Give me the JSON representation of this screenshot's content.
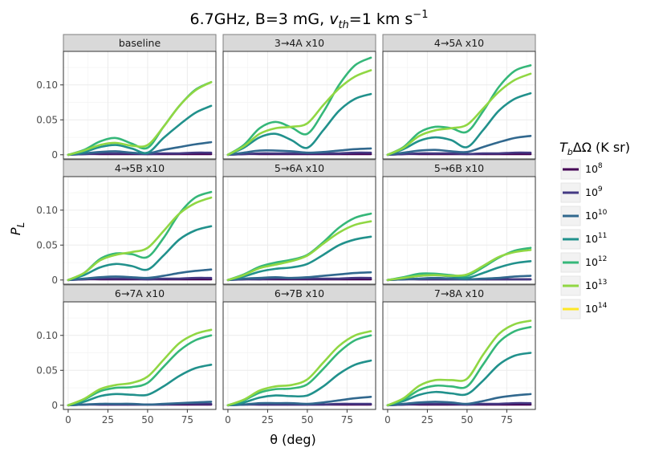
{
  "chart_data": {
    "type": "line",
    "title": "6.7GHz, B=3 mG, v_th=1 km s^-1",
    "title_parts": {
      "prefix": "6.7GHz, B=3 mG, ",
      "v": "v",
      "sub": "th",
      "eq": "=1 km s",
      "sup": "−1"
    },
    "xlabel": "θ (deg)",
    "ylabel": "P_L",
    "ylabel_parts": {
      "main": "P",
      "sub": "L"
    },
    "xlim": [
      -3,
      93
    ],
    "ylim": [
      -0.006,
      0.148
    ],
    "xticks": [
      0,
      25,
      50,
      75
    ],
    "xtick_labels": [
      "0",
      "25",
      "50",
      "75"
    ],
    "yticks": [
      0,
      0.05,
      0.1
    ],
    "ytick_labels": [
      "0",
      "0.05",
      "0.10"
    ],
    "x": [
      0,
      10,
      20,
      30,
      40,
      50,
      60,
      70,
      80,
      90
    ],
    "legend": {
      "title": "T_bΔΩ (K sr)",
      "title_parts": {
        "T": "T",
        "sub": "b",
        "rest": "ΔΩ (K sr)"
      },
      "entries": [
        {
          "base": "10",
          "exp": "8",
          "color": "#440154"
        },
        {
          "base": "10",
          "exp": "9",
          "color": "#443983"
        },
        {
          "base": "10",
          "exp": "10",
          "color": "#31688e"
        },
        {
          "base": "10",
          "exp": "11",
          "color": "#21918c"
        },
        {
          "base": "10",
          "exp": "12",
          "color": "#35b779"
        },
        {
          "base": "10",
          "exp": "13",
          "color": "#90d743"
        },
        {
          "base": "10",
          "exp": "14",
          "color": "#fde725"
        }
      ]
    },
    "panels": [
      {
        "label": "baseline",
        "series": [
          {
            "name": "1e8",
            "values": [
              0,
              0.001,
              0.001,
              0.001,
              0.001,
              0.001,
              0.001,
              0.001,
              0.001,
              0.001
            ]
          },
          {
            "name": "1e9",
            "values": [
              0,
              0.001,
              0.002,
              0.002,
              0.002,
              0.001,
              0.002,
              0.002,
              0.003,
              0.003
            ]
          },
          {
            "name": "1e10",
            "values": [
              0,
              0.002,
              0.004,
              0.005,
              0.003,
              0.002,
              0.007,
              0.011,
              0.015,
              0.018
            ]
          },
          {
            "name": "1e11",
            "values": [
              0,
              0.004,
              0.011,
              0.014,
              0.009,
              0.003,
              0.024,
              0.043,
              0.06,
              0.07
            ]
          },
          {
            "name": "1e12",
            "values": [
              0,
              0.007,
              0.019,
              0.024,
              0.016,
              0.01,
              0.04,
              0.07,
              0.093,
              0.104
            ]
          },
          {
            "name": "1e13",
            "values": [
              0,
              0.006,
              0.014,
              0.017,
              0.013,
              0.014,
              0.04,
              0.07,
              0.092,
              0.104
            ]
          }
        ]
      },
      {
        "label": "3→4A x10",
        "series": [
          {
            "name": "1e8",
            "values": [
              0,
              0.001,
              0.001,
              0.001,
              0.001,
              0.001,
              0.001,
              0.001,
              0.001,
              0.001
            ]
          },
          {
            "name": "1e9",
            "values": [
              0,
              0.001,
              0.002,
              0.002,
              0.002,
              0.002,
              0.002,
              0.002,
              0.003,
              0.003
            ]
          },
          {
            "name": "1e10",
            "values": [
              0,
              0.003,
              0.006,
              0.006,
              0.005,
              0.003,
              0.004,
              0.006,
              0.008,
              0.009
            ]
          },
          {
            "name": "1e11",
            "values": [
              0,
              0.01,
              0.025,
              0.03,
              0.021,
              0.01,
              0.035,
              0.063,
              0.08,
              0.087
            ]
          },
          {
            "name": "1e12",
            "values": [
              0,
              0.014,
              0.038,
              0.047,
              0.039,
              0.03,
              0.061,
              0.1,
              0.128,
              0.139
            ]
          },
          {
            "name": "1e13",
            "values": [
              0,
              0.012,
              0.03,
              0.038,
              0.04,
              0.045,
              0.071,
              0.095,
              0.112,
              0.121
            ]
          }
        ]
      },
      {
        "label": "4→5A x10",
        "series": [
          {
            "name": "1e8",
            "values": [
              0,
              0.001,
              0.001,
              0.001,
              0.001,
              0.001,
              0.001,
              0.001,
              0.001,
              0.001
            ]
          },
          {
            "name": "1e9",
            "values": [
              0,
              0.001,
              0.002,
              0.002,
              0.002,
              0.001,
              0.002,
              0.002,
              0.003,
              0.003
            ]
          },
          {
            "name": "1e10",
            "values": [
              0,
              0.003,
              0.006,
              0.007,
              0.005,
              0.004,
              0.011,
              0.018,
              0.024,
              0.027
            ]
          },
          {
            "name": "1e11",
            "values": [
              0,
              0.008,
              0.02,
              0.025,
              0.021,
              0.011,
              0.035,
              0.063,
              0.08,
              0.088
            ]
          },
          {
            "name": "1e12",
            "values": [
              0,
              0.011,
              0.032,
              0.04,
              0.038,
              0.033,
              0.062,
              0.097,
              0.12,
              0.128
            ]
          },
          {
            "name": "1e13",
            "values": [
              0,
              0.01,
              0.027,
              0.035,
              0.038,
              0.043,
              0.066,
              0.09,
              0.107,
              0.116
            ]
          }
        ]
      },
      {
        "label": "4→5B x10",
        "series": [
          {
            "name": "1e8",
            "values": [
              0,
              0.001,
              0.001,
              0.001,
              0.001,
              0.001,
              0.001,
              0.001,
              0.001,
              0.001
            ]
          },
          {
            "name": "1e9",
            "values": [
              0,
              0.001,
              0.002,
              0.002,
              0.002,
              0.001,
              0.002,
              0.002,
              0.003,
              0.003
            ]
          },
          {
            "name": "1e10",
            "values": [
              0,
              0.002,
              0.004,
              0.005,
              0.004,
              0.003,
              0.006,
              0.01,
              0.013,
              0.015
            ]
          },
          {
            "name": "1e11",
            "values": [
              0,
              0.007,
              0.018,
              0.023,
              0.02,
              0.015,
              0.035,
              0.058,
              0.071,
              0.077
            ]
          },
          {
            "name": "1e12",
            "values": [
              0,
              0.01,
              0.03,
              0.038,
              0.037,
              0.033,
              0.06,
              0.095,
              0.118,
              0.126
            ]
          },
          {
            "name": "1e13",
            "values": [
              0,
              0.01,
              0.028,
              0.036,
              0.04,
              0.046,
              0.07,
              0.095,
              0.11,
              0.118
            ]
          }
        ]
      },
      {
        "label": "5→6A x10",
        "series": [
          {
            "name": "1e8",
            "values": [
              0,
              0.001,
              0.001,
              0.001,
              0.001,
              0.001,
              0.001,
              0.001,
              0.001,
              0.001
            ]
          },
          {
            "name": "1e9",
            "values": [
              0,
              0.001,
              0.001,
              0.002,
              0.002,
              0.002,
              0.002,
              0.002,
              0.003,
              0.003
            ]
          },
          {
            "name": "1e10",
            "values": [
              0,
              0.002,
              0.003,
              0.004,
              0.003,
              0.004,
              0.006,
              0.008,
              0.01,
              0.011
            ]
          },
          {
            "name": "1e11",
            "values": [
              0,
              0.005,
              0.012,
              0.016,
              0.018,
              0.023,
              0.036,
              0.05,
              0.058,
              0.062
            ]
          },
          {
            "name": "1e12",
            "values": [
              0,
              0.008,
              0.019,
              0.025,
              0.029,
              0.036,
              0.054,
              0.075,
              0.089,
              0.095
            ]
          },
          {
            "name": "1e13",
            "values": [
              0,
              0.007,
              0.017,
              0.022,
              0.027,
              0.035,
              0.052,
              0.068,
              0.079,
              0.084
            ]
          }
        ]
      },
      {
        "label": "5→6B x10",
        "series": [
          {
            "name": "1e8",
            "values": [
              0,
              0.001,
              0.001,
              0.001,
              0.001,
              0.001,
              0.001,
              0.001,
              0.001,
              0.001
            ]
          },
          {
            "name": "1e9",
            "values": [
              0,
              0.001,
              0.001,
              0.001,
              0.001,
              0.001,
              0.001,
              0.001,
              0.001,
              0.001
            ]
          },
          {
            "name": "1e10",
            "values": [
              0,
              0.001,
              0.002,
              0.003,
              0.002,
              0.001,
              0.002,
              0.003,
              0.005,
              0.006
            ]
          },
          {
            "name": "1e11",
            "values": [
              0,
              0.003,
              0.006,
              0.007,
              0.005,
              0.003,
              0.01,
              0.018,
              0.024,
              0.027
            ]
          },
          {
            "name": "1e12",
            "values": [
              0,
              0.004,
              0.009,
              0.009,
              0.007,
              0.006,
              0.018,
              0.032,
              0.042,
              0.046
            ]
          },
          {
            "name": "1e13",
            "values": [
              0,
              0.003,
              0.006,
              0.007,
              0.006,
              0.008,
              0.02,
              0.033,
              0.04,
              0.043
            ]
          }
        ]
      },
      {
        "label": "6→7A x10",
        "series": [
          {
            "name": "1e8",
            "values": [
              0,
              0.001,
              0.001,
              0.001,
              0.001,
              0.001,
              0.001,
              0.001,
              0.001,
              0.001
            ]
          },
          {
            "name": "1e9",
            "values": [
              0,
              0.001,
              0.001,
              0.001,
              0.001,
              0.001,
              0.001,
              0.002,
              0.002,
              0.002
            ]
          },
          {
            "name": "1e10",
            "values": [
              0,
              0.001,
              0.002,
              0.002,
              0.002,
              0.001,
              0.002,
              0.003,
              0.004,
              0.005
            ]
          },
          {
            "name": "1e11",
            "values": [
              0,
              0.005,
              0.013,
              0.016,
              0.015,
              0.015,
              0.027,
              0.042,
              0.053,
              0.058
            ]
          },
          {
            "name": "1e12",
            "values": [
              0,
              0.008,
              0.02,
              0.025,
              0.026,
              0.032,
              0.055,
              0.078,
              0.093,
              0.1
            ]
          },
          {
            "name": "1e13",
            "values": [
              0,
              0.009,
              0.023,
              0.029,
              0.032,
              0.041,
              0.065,
              0.089,
              0.102,
              0.108
            ]
          }
        ]
      },
      {
        "label": "6→7B x10",
        "series": [
          {
            "name": "1e8",
            "values": [
              0,
              0.001,
              0.001,
              0.001,
              0.001,
              0.001,
              0.001,
              0.001,
              0.001,
              0.001
            ]
          },
          {
            "name": "1e9",
            "values": [
              0,
              0.001,
              0.001,
              0.001,
              0.001,
              0.001,
              0.001,
              0.002,
              0.002,
              0.002
            ]
          },
          {
            "name": "1e10",
            "values": [
              0,
              0.001,
              0.003,
              0.003,
              0.003,
              0.002,
              0.004,
              0.007,
              0.01,
              0.012
            ]
          },
          {
            "name": "1e11",
            "values": [
              0,
              0.004,
              0.011,
              0.014,
              0.013,
              0.014,
              0.027,
              0.045,
              0.058,
              0.064
            ]
          },
          {
            "name": "1e12",
            "values": [
              0,
              0.007,
              0.018,
              0.023,
              0.024,
              0.03,
              0.052,
              0.076,
              0.093,
              0.1
            ]
          },
          {
            "name": "1e13",
            "values": [
              0,
              0.008,
              0.021,
              0.027,
              0.029,
              0.037,
              0.061,
              0.085,
              0.1,
              0.106
            ]
          }
        ]
      },
      {
        "label": "7→8A x10",
        "series": [
          {
            "name": "1e8",
            "values": [
              0,
              0.001,
              0.001,
              0.001,
              0.001,
              0.001,
              0.001,
              0.001,
              0.001,
              0.001
            ]
          },
          {
            "name": "1e9",
            "values": [
              0,
              0.001,
              0.002,
              0.002,
              0.002,
              0.001,
              0.002,
              0.002,
              0.003,
              0.003
            ]
          },
          {
            "name": "1e10",
            "values": [
              0,
              0.002,
              0.004,
              0.005,
              0.004,
              0.002,
              0.006,
              0.011,
              0.014,
              0.016
            ]
          },
          {
            "name": "1e11",
            "values": [
              0,
              0.006,
              0.015,
              0.019,
              0.017,
              0.016,
              0.035,
              0.058,
              0.071,
              0.075
            ]
          },
          {
            "name": "1e12",
            "values": [
              0,
              0.008,
              0.022,
              0.028,
              0.027,
              0.027,
              0.058,
              0.09,
              0.106,
              0.112
            ]
          },
          {
            "name": "1e13",
            "values": [
              0,
              0.01,
              0.028,
              0.036,
              0.036,
              0.038,
              0.072,
              0.102,
              0.116,
              0.121
            ]
          }
        ]
      }
    ]
  }
}
